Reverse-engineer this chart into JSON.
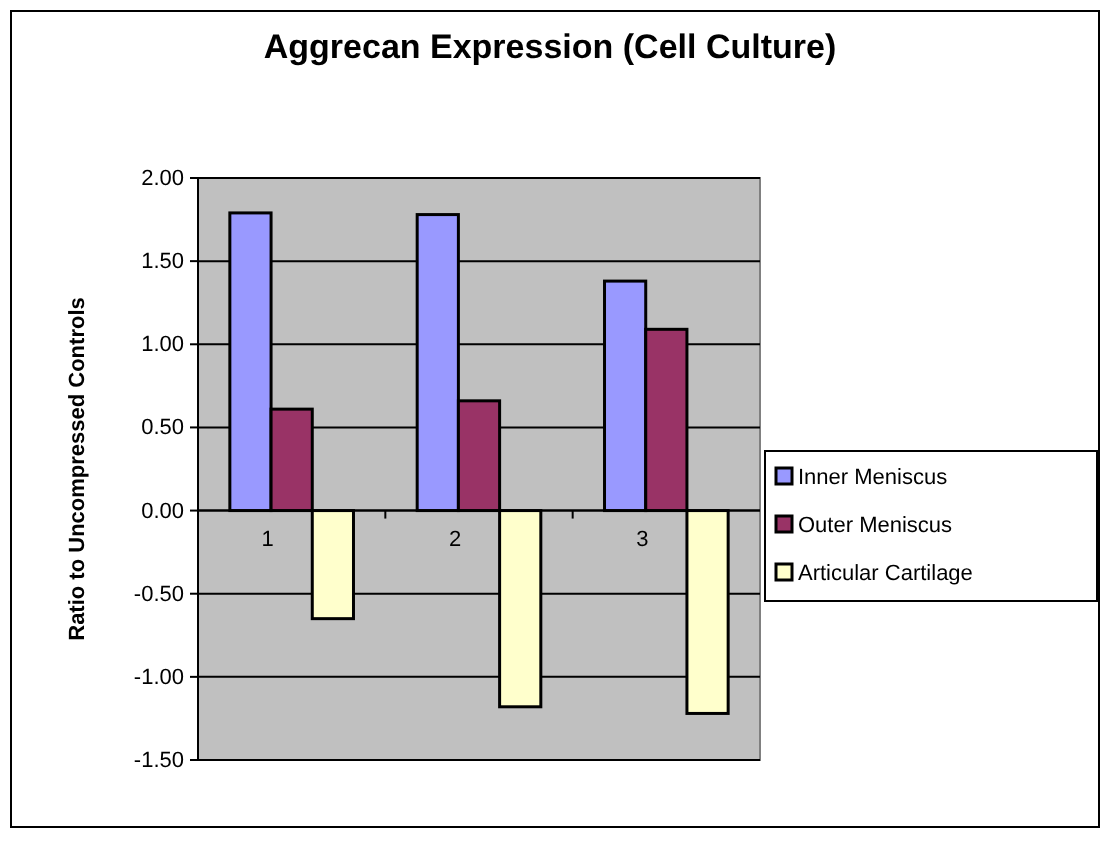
{
  "chart_data": {
    "type": "bar",
    "title": "Aggrecan Expression (Cell Culture)",
    "ylabel": "Ratio to Uncompressed  Controls",
    "categories": [
      "1",
      "2",
      "3"
    ],
    "series": [
      {
        "name": "Inner Meniscus",
        "color": "#9999ff",
        "values": [
          1.79,
          1.78,
          1.38
        ]
      },
      {
        "name": "Outer Meniscus",
        "color": "#993366",
        "values": [
          0.61,
          0.66,
          1.09
        ]
      },
      {
        "name": "Articular Cartilage",
        "color": "#ffffcc",
        "values": [
          -0.65,
          -1.18,
          -1.22
        ]
      }
    ],
    "ylim": [
      -1.5,
      2
    ],
    "yticks": [
      {
        "value": -1.5,
        "label": "-1.50"
      },
      {
        "value": -1,
        "label": "-1.00"
      },
      {
        "value": -0.5,
        "label": "-0.50"
      },
      {
        "value": 0,
        "label": "0.00"
      },
      {
        "value": 0.5,
        "label": "0.50"
      },
      {
        "value": 1,
        "label": "1.00"
      },
      {
        "value": 1.5,
        "label": "1.50"
      },
      {
        "value": 2,
        "label": "2.00"
      }
    ],
    "grid": "y",
    "legend": "right"
  }
}
